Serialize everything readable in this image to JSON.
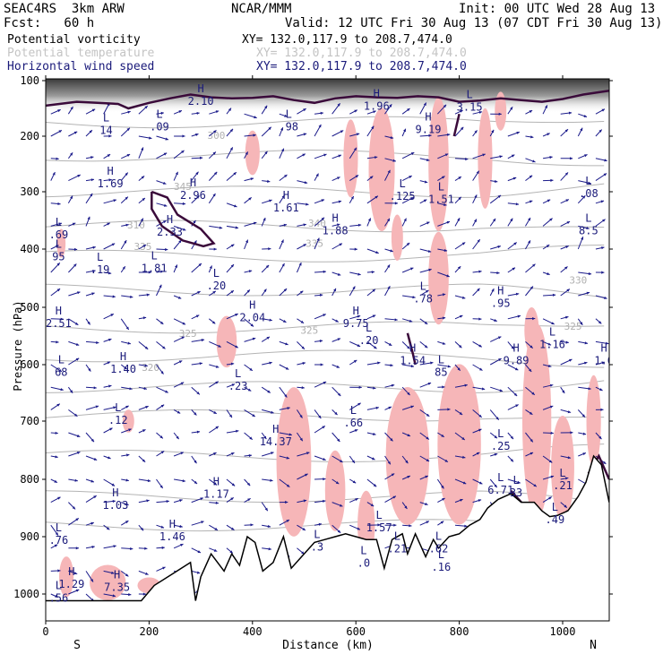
{
  "header": {
    "model": "SEAC4RS  3km ARW",
    "org": "NCAR/MMM",
    "init": "Init: 00 UTC Wed 28 Aug 13",
    "fcst": "Fcst:   60 h",
    "valid": "Valid: 12 UTC Fri 30 Aug 13 (07 CDT Fri 30 Aug 13)"
  },
  "legend": [
    {
      "name": "Potential vorticity",
      "xy": "XY= 132.0,117.9 to 208.7,474.0",
      "color": "#000000",
      "xy_color": "#000000"
    },
    {
      "name": "Potential temperature",
      "xy": "XY= 132.0,117.9 to 208.7,474.0",
      "color": "#c4c4c4",
      "xy_color": "#c4c4c4"
    },
    {
      "name": "Horizontal wind speed",
      "xy": "XY= 132.0,117.9 to 208.7,474.0",
      "color": "#1a1a7a",
      "xy_color": "#1a1a7a"
    }
  ],
  "chart_data": {
    "type": "cross-section",
    "xlabel": "Distance (km)",
    "ylabel": "Pressure (hPa)",
    "x_ticks": [
      0,
      200,
      400,
      600,
      800,
      1000
    ],
    "y_ticks": [
      100,
      200,
      300,
      400,
      500,
      600,
      700,
      800,
      900,
      1000
    ],
    "xlim": [
      0,
      1090
    ],
    "ylim": [
      1040,
      100
    ],
    "y_scale": "log",
    "direction_left": "S",
    "direction_right": "N",
    "theta_labels": [
      {
        "label": "345",
        "x": 265,
        "p": 290
      },
      {
        "label": "340",
        "x": 525,
        "p": 355
      },
      {
        "label": "335",
        "x": 188,
        "p": 395
      },
      {
        "label": "335",
        "x": 520,
        "p": 390
      },
      {
        "label": "330",
        "x": 1030,
        "p": 453
      },
      {
        "label": "325",
        "x": 275,
        "p": 545
      },
      {
        "label": "325",
        "x": 510,
        "p": 540
      },
      {
        "label": "325",
        "x": 1020,
        "p": 533
      },
      {
        "label": "320",
        "x": 203,
        "p": 605
      },
      {
        "label": "300",
        "x": 330,
        "p": 198
      },
      {
        "label": "310",
        "x": 175,
        "p": 358
      }
    ],
    "hl_markers": [
      {
        "type": "H",
        "value": "2.10",
        "x": 300,
        "p": 134
      },
      {
        "type": "H",
        "value": "1.96",
        "x": 640,
        "p": 143
      },
      {
        "type": "H",
        "value": "9.19",
        "x": 740,
        "p": 185
      },
      {
        "type": "L",
        "value": "3.15",
        "x": 820,
        "p": 144
      },
      {
        "type": "L",
        "value": "14",
        "x": 117,
        "p": 186
      },
      {
        "type": "L",
        "value": ".09",
        "x": 220,
        "p": 180
      },
      {
        "type": "L",
        "value": ".98",
        "x": 470,
        "p": 180
      },
      {
        "type": "H",
        "value": "1.69",
        "x": 125,
        "p": 282
      },
      {
        "type": "H",
        "value": "2.96",
        "x": 285,
        "p": 303
      },
      {
        "type": "H",
        "value": "1.61",
        "x": 465,
        "p": 325
      },
      {
        "type": "H",
        "value": "2.33",
        "x": 240,
        "p": 367
      },
      {
        "type": "H",
        "value": "1.88",
        "x": 560,
        "p": 365
      },
      {
        "type": "L",
        "value": ".125",
        "x": 690,
        "p": 305
      },
      {
        "type": "L",
        "value": "1.51",
        "x": 765,
        "p": 310
      },
      {
        "type": "L",
        "value": ".08",
        "x": 1050,
        "p": 300
      },
      {
        "type": "L",
        "value": "8.5",
        "x": 1050,
        "p": 365
      },
      {
        "type": "L",
        "value": ".69",
        "x": 25,
        "p": 372
      },
      {
        "type": "L",
        "value": "95",
        "x": 25,
        "p": 410
      },
      {
        "type": "L",
        "value": ".19",
        "x": 105,
        "p": 432
      },
      {
        "type": "L",
        "value": "1.81",
        "x": 210,
        "p": 430
      },
      {
        "type": "L",
        "value": ".20",
        "x": 330,
        "p": 460
      },
      {
        "type": "H",
        "value": "2.04",
        "x": 400,
        "p": 515
      },
      {
        "type": "L",
        "value": ".78",
        "x": 730,
        "p": 482
      },
      {
        "type": "H",
        "value": ".95",
        "x": 880,
        "p": 490
      },
      {
        "type": "H",
        "value": "2.51",
        "x": 25,
        "p": 525
      },
      {
        "type": "H",
        "value": "9.75",
        "x": 600,
        "p": 525
      },
      {
        "type": "L",
        "value": ".20",
        "x": 625,
        "p": 555
      },
      {
        "type": "L",
        "value": "1.16",
        "x": 980,
        "p": 562
      },
      {
        "type": "H",
        "value": "9.89",
        "x": 910,
        "p": 590
      },
      {
        "type": "H",
        "value": "1.6",
        "x": 1080,
        "p": 590
      },
      {
        "type": "H",
        "value": "1.40",
        "x": 150,
        "p": 605
      },
      {
        "type": "H",
        "value": "1.54",
        "x": 710,
        "p": 590
      },
      {
        "type": "L",
        "value": "85",
        "x": 765,
        "p": 610
      },
      {
        "type": "L",
        "value": "68",
        "x": 30,
        "p": 610
      },
      {
        "type": "L",
        "value": ".23",
        "x": 372,
        "p": 635
      },
      {
        "type": "L",
        "value": ".12",
        "x": 140,
        "p": 695
      },
      {
        "type": "H",
        "value": "14.37",
        "x": 445,
        "p": 732
      },
      {
        "type": "L",
        "value": ".66",
        "x": 595,
        "p": 700
      },
      {
        "type": "L",
        "value": ".25",
        "x": 880,
        "p": 740
      },
      {
        "type": "H",
        "value": "1.03",
        "x": 135,
        "p": 842
      },
      {
        "type": "H",
        "value": "1.17",
        "x": 330,
        "p": 823
      },
      {
        "type": "L",
        "value": "6.71",
        "x": 880,
        "p": 816
      },
      {
        "type": "L",
        "value": "33",
        "x": 910,
        "p": 820
      },
      {
        "type": "L",
        "value": ".21",
        "x": 1000,
        "p": 808
      },
      {
        "type": "L",
        "value": ".49",
        "x": 985,
        "p": 867
      },
      {
        "type": "L",
        "value": ".76",
        "x": 25,
        "p": 903
      },
      {
        "type": "H",
        "value": "1.46",
        "x": 245,
        "p": 897
      },
      {
        "type": "L",
        "value": "1.57",
        "x": 645,
        "p": 881
      },
      {
        "type": "L",
        "value": ".21",
        "x": 680,
        "p": 918
      },
      {
        "type": "L",
        "value": ".62",
        "x": 760,
        "p": 918
      },
      {
        "type": "L",
        "value": ".3",
        "x": 525,
        "p": 915
      },
      {
        "type": "L",
        "value": ".16",
        "x": 765,
        "p": 950
      },
      {
        "type": "L",
        "value": ".0",
        "x": 615,
        "p": 943
      },
      {
        "type": "H",
        "value": "1.29",
        "x": 50,
        "p": 980
      },
      {
        "type": "L",
        "value": ".56",
        "x": 25,
        "p": 1003
      },
      {
        "type": "H",
        "value": "7.35",
        "x": 138,
        "p": 985
      }
    ],
    "terrain_p": [
      [
        0,
        1010
      ],
      [
        100,
        1010
      ],
      [
        185,
        1010
      ],
      [
        210,
        985
      ],
      [
        245,
        965
      ],
      [
        280,
        945
      ],
      [
        290,
        1010
      ],
      [
        300,
        970
      ],
      [
        320,
        930
      ],
      [
        345,
        960
      ],
      [
        360,
        930
      ],
      [
        375,
        950
      ],
      [
        390,
        900
      ],
      [
        405,
        910
      ],
      [
        420,
        960
      ],
      [
        440,
        945
      ],
      [
        460,
        900
      ],
      [
        475,
        955
      ],
      [
        495,
        935
      ],
      [
        520,
        910
      ],
      [
        540,
        905
      ],
      [
        560,
        900
      ],
      [
        580,
        895
      ],
      [
        600,
        900
      ],
      [
        620,
        905
      ],
      [
        640,
        905
      ],
      [
        655,
        955
      ],
      [
        670,
        905
      ],
      [
        690,
        895
      ],
      [
        700,
        930
      ],
      [
        715,
        895
      ],
      [
        735,
        935
      ],
      [
        750,
        905
      ],
      [
        760,
        920
      ],
      [
        780,
        900
      ],
      [
        800,
        895
      ],
      [
        820,
        880
      ],
      [
        840,
        870
      ],
      [
        855,
        850
      ],
      [
        875,
        835
      ],
      [
        900,
        825
      ],
      [
        920,
        840
      ],
      [
        945,
        840
      ],
      [
        960,
        855
      ],
      [
        975,
        865
      ],
      [
        990,
        863
      ],
      [
        1010,
        855
      ],
      [
        1030,
        830
      ],
      [
        1045,
        805
      ],
      [
        1060,
        760
      ],
      [
        1075,
        775
      ],
      [
        1090,
        840
      ]
    ],
    "tropopause_pv": [
      [
        0,
        145
      ],
      [
        60,
        138
      ],
      [
        100,
        140
      ],
      [
        140,
        142
      ],
      [
        160,
        150
      ],
      [
        200,
        140
      ],
      [
        240,
        132
      ],
      [
        280,
        125
      ],
      [
        320,
        130
      ],
      [
        360,
        132
      ],
      [
        400,
        131
      ],
      [
        440,
        128
      ],
      [
        480,
        135
      ],
      [
        520,
        140
      ],
      [
        560,
        132
      ],
      [
        600,
        128
      ],
      [
        640,
        130
      ],
      [
        680,
        131
      ],
      [
        720,
        128
      ],
      [
        760,
        130
      ],
      [
        800,
        138
      ],
      [
        840,
        136
      ],
      [
        880,
        132
      ],
      [
        920,
        135
      ],
      [
        960,
        138
      ],
      [
        1000,
        133
      ],
      [
        1040,
        125
      ],
      [
        1090,
        118
      ]
    ]
  }
}
